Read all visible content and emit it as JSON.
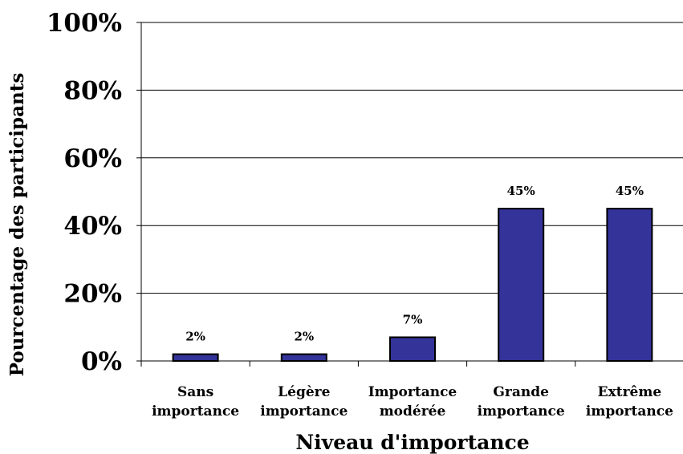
{
  "chart_data": {
    "type": "bar",
    "categories": [
      [
        "Sans",
        "importance"
      ],
      [
        "Légère",
        "importance"
      ],
      [
        "Importance",
        "modérée"
      ],
      [
        "Grande",
        "importance"
      ],
      [
        "Extrême",
        "importance"
      ]
    ],
    "values": [
      2,
      2,
      7,
      45,
      45
    ],
    "data_labels": [
      "2%",
      "2%",
      "7%",
      "45%",
      "45%"
    ],
    "xlabel": "Niveau d'importance",
    "ylabel": "Pourcentage des participants",
    "ylim": [
      0,
      100
    ],
    "yticks": [
      0,
      20,
      40,
      60,
      80,
      100
    ],
    "ytick_labels": [
      "0%",
      "20%",
      "40%",
      "60%",
      "80%",
      "100%"
    ],
    "grid": true,
    "bar_color": "#333399",
    "bar_edge_color": "#000000"
  }
}
